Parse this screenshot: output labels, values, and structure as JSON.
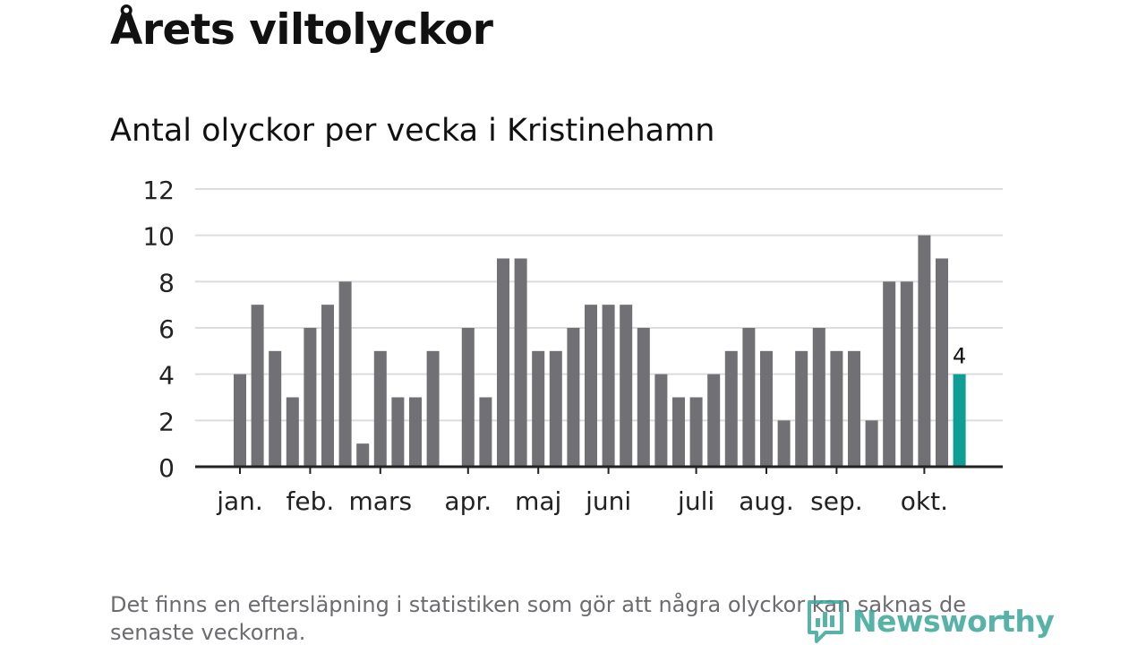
{
  "title": "Årets viltolyckor",
  "subtitle": "Antal olyckor per vecka i Kristinehamn",
  "footnote": "Det finns en eftersläpning i statistiken som gör att några olyckor kan saknas de senaste veckorna.",
  "brand": {
    "name": "Newsworthy",
    "icon": "newsworthy-logo-icon"
  },
  "colors": {
    "bar": "#707075",
    "highlight": "#0e9e95",
    "grid": "#dcdcdc",
    "axis": "#222222",
    "text": "#111111",
    "brand": "#3aa59a"
  },
  "chart_data": {
    "type": "bar",
    "title": "Antal olyckor per vecka i Kristinehamn",
    "xlabel": "",
    "ylabel": "",
    "ylim": [
      0,
      12
    ],
    "yticks": [
      "0",
      "2",
      "4",
      "6",
      "8",
      "10",
      "12"
    ],
    "grid": true,
    "weeks": [
      1,
      2,
      3,
      4,
      5,
      6,
      7,
      8,
      9,
      10,
      11,
      12,
      13,
      14,
      15,
      16,
      17,
      18,
      19,
      20,
      21,
      22,
      23,
      24,
      25,
      26,
      27,
      28,
      29,
      30,
      31,
      32,
      33,
      34,
      35,
      36,
      37,
      38,
      39,
      40,
      41,
      42
    ],
    "values": [
      4,
      7,
      5,
      3,
      6,
      7,
      8,
      1,
      5,
      3,
      3,
      5,
      null,
      6,
      3,
      9,
      9,
      5,
      5,
      6,
      7,
      7,
      7,
      6,
      4,
      3,
      3,
      4,
      5,
      6,
      5,
      2,
      5,
      6,
      5,
      5,
      2,
      8,
      8,
      10,
      9,
      4
    ],
    "highlight_index": 41,
    "highlight_label": "4",
    "month_labels": [
      {
        "label": "jan.",
        "week": 1
      },
      {
        "label": "feb.",
        "week": 5
      },
      {
        "label": "mars",
        "week": 9
      },
      {
        "label": "apr.",
        "week": 14
      },
      {
        "label": "maj",
        "week": 18
      },
      {
        "label": "juni",
        "week": 22
      },
      {
        "label": "juli",
        "week": 27
      },
      {
        "label": "aug.",
        "week": 31
      },
      {
        "label": "sep.",
        "week": 35
      },
      {
        "label": "okt.",
        "week": 40
      }
    ]
  }
}
